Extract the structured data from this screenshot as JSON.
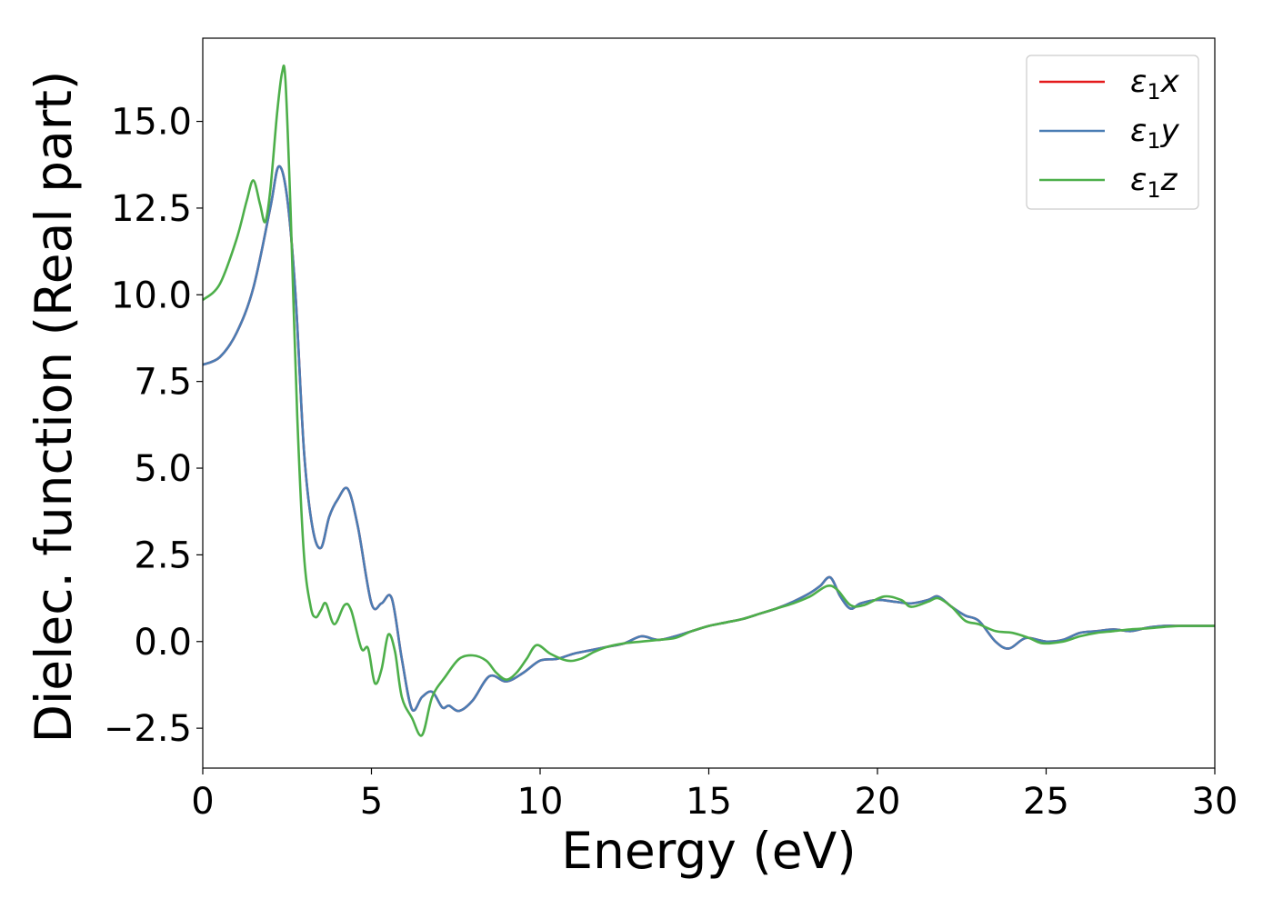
{
  "chart_data": {
    "type": "line",
    "title": "",
    "xlabel": "Energy (eV)",
    "ylabel": "Dielec. function (Real part)",
    "xlim": [
      0,
      30
    ],
    "ylim": [
      -3.65,
      17.4
    ],
    "xticks": [
      0,
      5,
      10,
      15,
      20,
      25,
      30
    ],
    "xtick_labels": [
      "0",
      "5",
      "10",
      "15",
      "20",
      "25",
      "30"
    ],
    "yticks": [
      -2.5,
      0.0,
      2.5,
      5.0,
      7.5,
      10.0,
      12.5,
      15.0
    ],
    "ytick_labels": [
      "−2.5",
      "0.0",
      "2.5",
      "5.0",
      "7.5",
      "10.0",
      "12.5",
      "15.0"
    ],
    "grid": false,
    "legend_position": "top-right",
    "series": [
      {
        "name": "ε1x",
        "legend_base": "ε",
        "legend_sub": "1",
        "legend_var": "x",
        "color": "#e41a1c",
        "x": [
          0,
          0.5,
          1,
          1.5,
          2,
          2.25,
          2.5,
          2.75,
          3,
          3.25,
          3.5,
          3.75,
          4,
          4.3,
          4.6,
          5,
          5.3,
          5.6,
          5.9,
          6.2,
          6.5,
          6.8,
          7.1,
          7.3,
          7.6,
          8,
          8.5,
          9,
          9.5,
          10,
          10.5,
          11,
          11.5,
          12,
          12.5,
          13,
          13.5,
          14,
          14.5,
          15,
          15.5,
          16,
          16.5,
          17,
          17.5,
          18,
          18.3,
          18.6,
          18.9,
          19.2,
          19.5,
          20,
          20.5,
          21,
          21.5,
          21.8,
          22.2,
          22.6,
          23,
          23.5,
          23.9,
          24.4,
          25,
          25.5,
          26,
          26.5,
          27,
          27.5,
          28,
          28.5,
          29,
          29.5,
          30
        ],
        "values": [
          7.98,
          8.2,
          8.9,
          10.2,
          12.5,
          13.7,
          12.8,
          10.0,
          5.5,
          3.3,
          2.7,
          3.6,
          4.1,
          4.4,
          3.3,
          1.1,
          1.1,
          1.25,
          -0.5,
          -1.95,
          -1.6,
          -1.45,
          -1.9,
          -1.85,
          -2.0,
          -1.7,
          -1.0,
          -1.15,
          -0.9,
          -0.55,
          -0.5,
          -0.35,
          -0.25,
          -0.15,
          -0.05,
          0.15,
          0.05,
          0.15,
          0.3,
          0.45,
          0.55,
          0.65,
          0.8,
          0.95,
          1.15,
          1.4,
          1.6,
          1.85,
          1.3,
          0.95,
          1.1,
          1.2,
          1.15,
          1.1,
          1.2,
          1.3,
          1.0,
          0.75,
          0.6,
          0.0,
          -0.2,
          0.1,
          0.0,
          0.05,
          0.25,
          0.3,
          0.35,
          0.3,
          0.4,
          0.45,
          0.45,
          0.45,
          0.45
        ]
      },
      {
        "name": "ε1y",
        "legend_base": "ε",
        "legend_sub": "1",
        "legend_var": "y",
        "color": "#4a7db4",
        "x": [
          0,
          0.5,
          1,
          1.5,
          2,
          2.25,
          2.5,
          2.75,
          3,
          3.25,
          3.5,
          3.75,
          4,
          4.3,
          4.6,
          5,
          5.3,
          5.6,
          5.9,
          6.2,
          6.5,
          6.8,
          7.1,
          7.3,
          7.6,
          8,
          8.5,
          9,
          9.5,
          10,
          10.5,
          11,
          11.5,
          12,
          12.5,
          13,
          13.5,
          14,
          14.5,
          15,
          15.5,
          16,
          16.5,
          17,
          17.5,
          18,
          18.3,
          18.6,
          18.9,
          19.2,
          19.5,
          20,
          20.5,
          21,
          21.5,
          21.8,
          22.2,
          22.6,
          23,
          23.5,
          23.9,
          24.4,
          25,
          25.5,
          26,
          26.5,
          27,
          27.5,
          28,
          28.5,
          29,
          29.5,
          30
        ],
        "values": [
          7.98,
          8.2,
          8.9,
          10.2,
          12.5,
          13.7,
          12.8,
          10.0,
          5.5,
          3.3,
          2.7,
          3.6,
          4.1,
          4.4,
          3.3,
          1.1,
          1.1,
          1.25,
          -0.5,
          -1.95,
          -1.6,
          -1.45,
          -1.9,
          -1.85,
          -2.0,
          -1.7,
          -1.0,
          -1.15,
          -0.9,
          -0.55,
          -0.5,
          -0.35,
          -0.25,
          -0.15,
          -0.05,
          0.15,
          0.05,
          0.15,
          0.3,
          0.45,
          0.55,
          0.65,
          0.8,
          0.95,
          1.15,
          1.4,
          1.6,
          1.85,
          1.3,
          0.95,
          1.1,
          1.2,
          1.15,
          1.1,
          1.2,
          1.3,
          1.0,
          0.75,
          0.6,
          0.0,
          -0.2,
          0.1,
          0.0,
          0.05,
          0.25,
          0.3,
          0.35,
          0.3,
          0.4,
          0.45,
          0.45,
          0.45,
          0.45
        ]
      },
      {
        "name": "ε1z",
        "legend_base": "ε",
        "legend_sub": "1",
        "legend_var": "z",
        "color": "#4daf4a",
        "x": [
          0,
          0.5,
          1,
          1.3,
          1.5,
          1.7,
          1.85,
          2.0,
          2.2,
          2.35,
          2.45,
          2.6,
          2.8,
          3.0,
          3.2,
          3.35,
          3.5,
          3.65,
          3.9,
          4.2,
          4.4,
          4.7,
          4.9,
          5.1,
          5.3,
          5.5,
          5.7,
          5.9,
          6.2,
          6.5,
          6.8,
          7.2,
          7.6,
          8.0,
          8.4,
          8.7,
          9.0,
          9.3,
          9.6,
          9.9,
          10.3,
          10.8,
          11.2,
          11.6,
          12,
          12.5,
          13,
          13.5,
          14,
          14.5,
          15,
          15.5,
          16,
          16.5,
          17,
          17.5,
          18,
          18.5,
          18.8,
          19.2,
          19.6,
          20.2,
          20.7,
          21.0,
          21.5,
          21.8,
          22.2,
          22.6,
          23,
          23.5,
          24,
          24.5,
          24.9,
          25.5,
          26,
          26.5,
          27,
          27.5,
          28,
          28.5,
          29,
          29.5,
          30
        ],
        "values": [
          9.85,
          10.3,
          11.6,
          12.7,
          13.3,
          12.6,
          12.1,
          13.0,
          15.2,
          16.4,
          16.2,
          12.5,
          6.5,
          2.5,
          1.0,
          0.7,
          0.9,
          1.1,
          0.5,
          1.05,
          0.9,
          -0.2,
          -0.2,
          -1.2,
          -0.8,
          0.2,
          -0.3,
          -1.6,
          -2.2,
          -2.7,
          -1.6,
          -1.0,
          -0.5,
          -0.4,
          -0.55,
          -0.9,
          -1.1,
          -0.9,
          -0.5,
          -0.1,
          -0.35,
          -0.55,
          -0.5,
          -0.3,
          -0.15,
          -0.05,
          0.0,
          0.05,
          0.1,
          0.3,
          0.45,
          0.55,
          0.65,
          0.8,
          0.95,
          1.1,
          1.3,
          1.6,
          1.5,
          1.05,
          1.05,
          1.3,
          1.2,
          1.0,
          1.15,
          1.25,
          1.0,
          0.6,
          0.5,
          0.3,
          0.25,
          0.1,
          -0.05,
          0.0,
          0.15,
          0.25,
          0.3,
          0.35,
          0.38,
          0.42,
          0.45,
          0.45,
          0.45
        ]
      }
    ]
  }
}
